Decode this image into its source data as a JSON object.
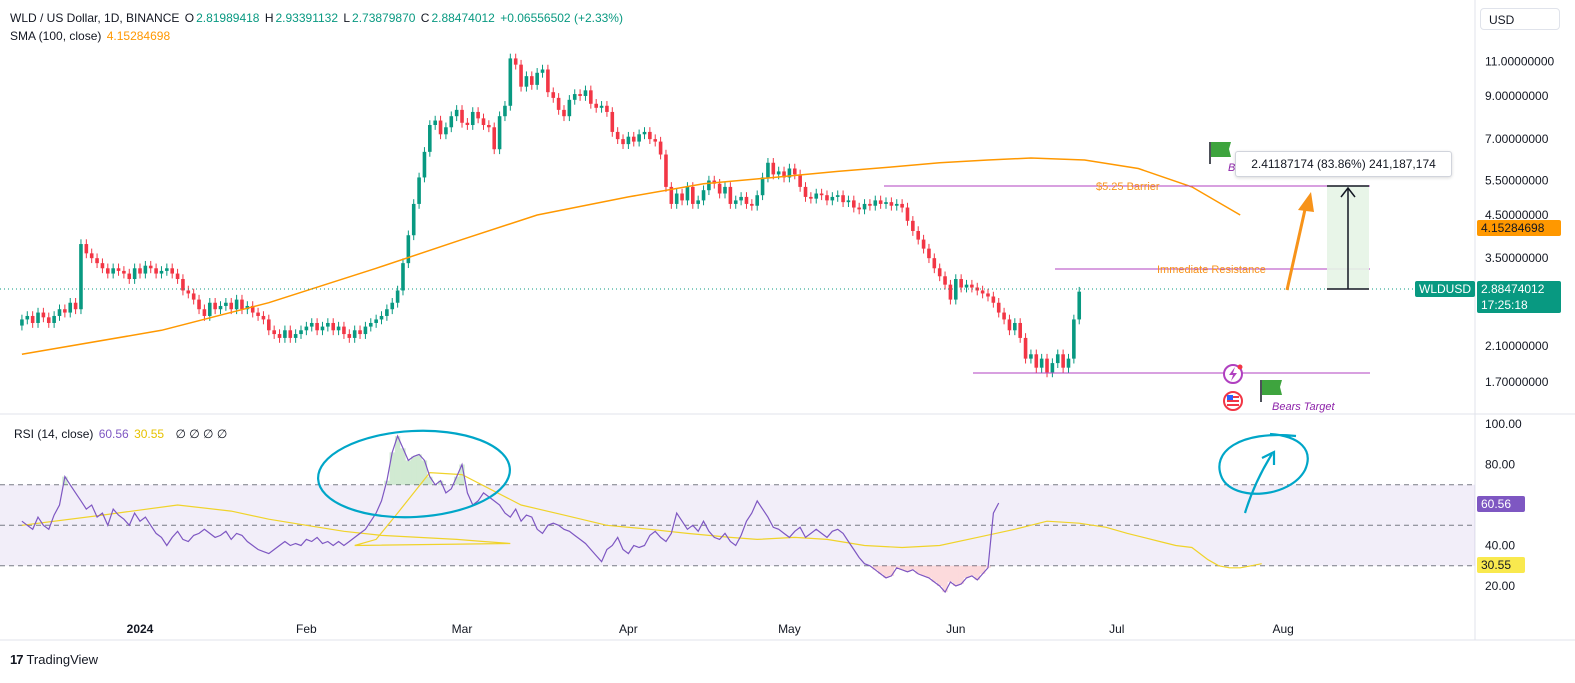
{
  "header": {
    "symbol": "WLD / US Dollar, 1D, BINANCE",
    "o_label": "O",
    "o_value": "2.81989418",
    "h_label": "H",
    "h_value": "2.93391132",
    "l_label": "L",
    "l_value": "2.73879870",
    "c_label": "C",
    "c_value": "2.88474012",
    "change": "+0.06556502 (+2.33%)",
    "sma_label": "SMA (100, close)",
    "sma_value": "4.15284698",
    "currency_button": "USD"
  },
  "rsi_header": {
    "label": "RSI (14, close)",
    "rsi_value": "60.56",
    "ma_value": "30.55",
    "extras": "∅ ∅ ∅ ∅"
  },
  "price_tags": {
    "sma_tag": "4.15284698",
    "symbol_tag": "WLDUSD",
    "price_tag": "2.88474012",
    "countdown": "17:25:18",
    "rsi_tag": "60.56",
    "rsi_ma_tag": "30.55"
  },
  "annotations": {
    "barrier": "$5.25 Barrier",
    "resistance": "Immediate Resistance",
    "bears_target": "Bears Target",
    "flag_b": "B",
    "measure": "2.41187174 (83.86%) 241,187,174"
  },
  "branding": {
    "logo": "17",
    "name": "TradingView"
  },
  "colors": {
    "up": "#089981",
    "down": "#f23645",
    "sma": "#ff9800",
    "rsi": "#7e57c2",
    "rsi_ma": "#f0d32a",
    "magenta_line": "#b040c0",
    "annotation_orange": "#f7931a",
    "circle": "#00a6c8"
  },
  "chart_data": [
    {
      "type": "candlestick",
      "title": "WLD / US Dollar, 1D, BINANCE",
      "scale": "log",
      "y_ticks": [
        "11.00000000",
        "9.00000000",
        "7.00000000",
        "5.50000000",
        "4.50000000",
        "3.50000000",
        "2.10000000",
        "1.70000000"
      ],
      "y_tick_values": [
        11.0,
        9.0,
        7.0,
        5.5,
        4.5,
        3.5,
        2.1,
        1.7
      ],
      "x_ticks": [
        "2024",
        "Feb",
        "Mar",
        "Apr",
        "May",
        "Jun",
        "Jul",
        "Aug"
      ],
      "x_tick_dates": [
        "2024-01-01",
        "2024-02-01",
        "2024-03-01",
        "2024-04-01",
        "2024-05-01",
        "2024-06-01",
        "2024-07-01",
        "2024-08-01"
      ],
      "start_date": "2023-12-10",
      "close": [
        2.45,
        2.5,
        2.4,
        2.55,
        2.48,
        2.4,
        2.5,
        2.6,
        2.55,
        2.7,
        2.6,
        3.8,
        3.6,
        3.5,
        3.4,
        3.3,
        3.2,
        3.3,
        3.25,
        3.2,
        3.1,
        3.3,
        3.2,
        3.35,
        3.3,
        3.2,
        3.25,
        3.3,
        3.2,
        3.1,
        2.9,
        2.85,
        2.75,
        2.6,
        2.5,
        2.7,
        2.6,
        2.65,
        2.7,
        2.6,
        2.75,
        2.6,
        2.65,
        2.55,
        2.5,
        2.45,
        2.3,
        2.25,
        2.2,
        2.3,
        2.2,
        2.25,
        2.3,
        2.35,
        2.4,
        2.3,
        2.35,
        2.4,
        2.3,
        2.35,
        2.25,
        2.2,
        2.3,
        2.25,
        2.35,
        2.4,
        2.45,
        2.5,
        2.6,
        2.7,
        2.9,
        3.4,
        4.0,
        4.8,
        5.6,
        6.5,
        7.6,
        7.8,
        7.2,
        7.5,
        8.0,
        8.3,
        7.7,
        7.6,
        8.2,
        7.9,
        7.6,
        7.5,
        6.6,
        8.0,
        8.5,
        11.2,
        10.8,
        9.5,
        10.1,
        9.6,
        10.3,
        10.5,
        9.2,
        8.9,
        8.3,
        8.0,
        8.8,
        9.1,
        9.0,
        9.3,
        8.6,
        8.4,
        8.5,
        8.2,
        7.3,
        7.0,
        6.8,
        7.1,
        6.9,
        7.2,
        7.3,
        7.0,
        6.9,
        6.4,
        5.3,
        4.8,
        5.1,
        4.9,
        5.3,
        4.8,
        4.9,
        5.2,
        5.5,
        5.4,
        5.1,
        5.3,
        4.8,
        4.9,
        5.0,
        4.8,
        4.75,
        5.05,
        5.6,
        6.1,
        5.7,
        5.8,
        5.6,
        5.9,
        5.7,
        5.3,
        5.0,
        4.95,
        5.1,
        5.05,
        4.9,
        5.0,
        5.05,
        4.85,
        4.9,
        4.7,
        4.65,
        4.8,
        4.75,
        4.9,
        4.8,
        4.85,
        4.75,
        4.8,
        4.7,
        4.35,
        4.1,
        3.9,
        3.7,
        3.5,
        3.3,
        3.15,
        3.0,
        2.75,
        3.1,
        2.95,
        3.0,
        2.95,
        2.9,
        2.85,
        2.8,
        2.7,
        2.55,
        2.45,
        2.3,
        2.4,
        2.2,
        1.95,
        2.0,
        1.85,
        1.95,
        1.8,
        1.9,
        2.0,
        1.85,
        1.95,
        2.45,
        2.88
      ],
      "open_offset_pct": 3.5,
      "sma_close": [
        2.0,
        2.3,
        2.7,
        3.3,
        3.9,
        4.5,
        5.0,
        5.4,
        5.6,
        5.8,
        5.95,
        6.1,
        6.2,
        6.27,
        6.2,
        5.9,
        5.3,
        4.5
      ],
      "sma_dates": [
        "2023-12-10",
        "2024-01-05",
        "2024-01-25",
        "2024-02-14",
        "2024-03-01",
        "2024-03-15",
        "2024-04-01",
        "2024-04-15",
        "2024-04-28",
        "2024-05-10",
        "2024-05-20",
        "2024-05-29",
        "2024-06-07",
        "2024-06-15",
        "2024-06-25",
        "2024-07-05",
        "2024-07-15",
        "2024-07-24"
      ]
    },
    {
      "type": "line",
      "title": "RSI (14, close)",
      "ylim": [
        10,
        105
      ],
      "y_ticks": [
        "100.00",
        "80.00",
        "40.00",
        "20.00"
      ],
      "y_tick_values": [
        100,
        80,
        40,
        20
      ],
      "bands": [
        70,
        50,
        30
      ],
      "series": [
        {
          "name": "RSI",
          "values": [
            52,
            50,
            48,
            54,
            50,
            48,
            55,
            60,
            74,
            70,
            66,
            62,
            58,
            60,
            54,
            56,
            50,
            58,
            55,
            53,
            50,
            56,
            52,
            54,
            50,
            46,
            44,
            40,
            44,
            47,
            43,
            42,
            45,
            46,
            48,
            46,
            44,
            45,
            47,
            43,
            46,
            45,
            42,
            40,
            38,
            37,
            36,
            38,
            40,
            42,
            40,
            41,
            40,
            43,
            42,
            44,
            41,
            42,
            40,
            42,
            40,
            42,
            44,
            46,
            48,
            52,
            56,
            62,
            72,
            86,
            94,
            88,
            82,
            84,
            85,
            82,
            74,
            70,
            72,
            66,
            68,
            74,
            80,
            66,
            60,
            62,
            66,
            64,
            62,
            60,
            56,
            54,
            58,
            52,
            55,
            54,
            48,
            46,
            50,
            51,
            50,
            48,
            47,
            45,
            43,
            41,
            38,
            35,
            32,
            38,
            40,
            44,
            38,
            36,
            40,
            39,
            40,
            45,
            47,
            44,
            42,
            46,
            56,
            52,
            48,
            50,
            47,
            52,
            47,
            44,
            43,
            46,
            42,
            40,
            45,
            52,
            56,
            62,
            58,
            54,
            49,
            48,
            46,
            44,
            47,
            49,
            44,
            46,
            48,
            46,
            44,
            47,
            48,
            46,
            42,
            38,
            34,
            31,
            30,
            28,
            26,
            24,
            25,
            29,
            28,
            27,
            28,
            26,
            25,
            24,
            22,
            20,
            17,
            22,
            20,
            21,
            24,
            25,
            23,
            26,
            29,
            56,
            61
          ],
          "start_date": "2023-12-10"
        },
        {
          "name": "RSI-based MA",
          "values": [
            50,
            55,
            60,
            57,
            53,
            50,
            47,
            45,
            44,
            43,
            42,
            41,
            40,
            43,
            56,
            76,
            75,
            60,
            55,
            50,
            48,
            46,
            44,
            43,
            44,
            43,
            40,
            39,
            40,
            44,
            48,
            52,
            51,
            49,
            46,
            44,
            42,
            40,
            39,
            33,
            30,
            29,
            29,
            30,
            31
          ],
          "dates": [
            "2023-12-10",
            "2023-12-25",
            "2024-01-08",
            "2024-01-18",
            "2024-01-25",
            "2024-02-01",
            "2024-02-08",
            "2024-02-15",
            "2024-02-22",
            "2024-02-29",
            "2024-03-05",
            "2024-03-10",
            "2024-02-10",
            "2024-02-14",
            "2024-02-18",
            "2024-02-24",
            "2024-03-01",
            "2024-03-12",
            "2024-03-20",
            "2024-03-28",
            "2024-04-05",
            "2024-04-12",
            "2024-04-20",
            "2024-04-25",
            "2024-05-02",
            "2024-05-08",
            "2024-05-15",
            "2024-05-22",
            "2024-05-29",
            "2024-06-05",
            "2024-06-12",
            "2024-06-18",
            "2024-06-24",
            "2024-06-29",
            "2024-07-03",
            "2024-07-06",
            "2024-07-09",
            "2024-07-12",
            "2024-07-15",
            "2024-07-18",
            "2024-07-20",
            "2024-07-22",
            "2024-07-24",
            "2024-07-26",
            "2024-07-28"
          ]
        }
      ]
    }
  ]
}
